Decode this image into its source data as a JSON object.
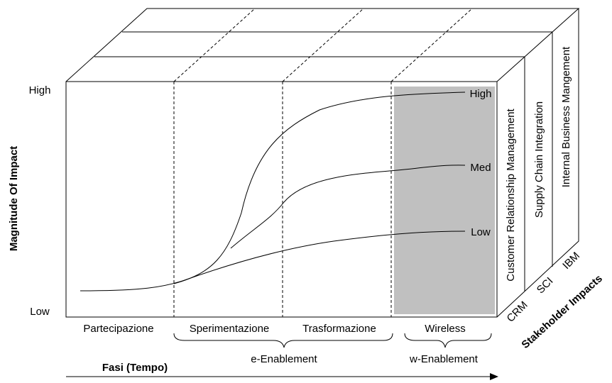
{
  "y_axis": {
    "label": "Magnitude Of Impact",
    "high": "High",
    "low": "Low"
  },
  "phases": [
    "Partecipazione",
    "Sperimentazione",
    "Trasformazione",
    "Wireless"
  ],
  "groups": [
    "e-Enablement",
    "w-Enablement"
  ],
  "x_axis": {
    "label": "Fasi (Tempo)"
  },
  "curves": [
    "High",
    "Med",
    "Low"
  ],
  "layers": [
    {
      "name": "Customer Relationship Management",
      "short": "CRM"
    },
    {
      "name": "Supply Chain Integration",
      "short": "SCI"
    },
    {
      "name": "Internal Business Mangement",
      "short": "IBM"
    }
  ],
  "depth_label": "Stakeholder Impacts"
}
